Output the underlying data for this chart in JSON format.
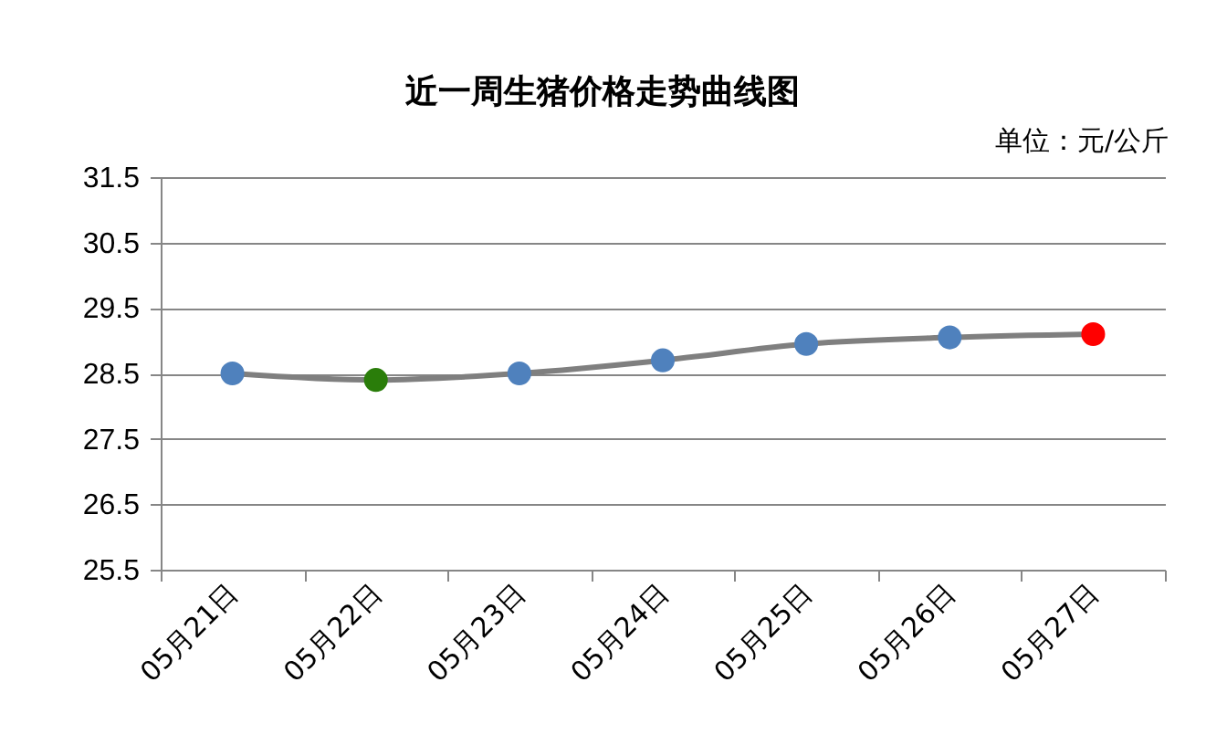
{
  "chart_data": {
    "type": "line",
    "title": "近一周生猪价格走势曲线图",
    "annotations": [
      "单位：元/公斤"
    ],
    "categories": [
      "05月21日",
      "05月22日",
      "05月23日",
      "05月24日",
      "05月25日",
      "05月26日",
      "05月27日"
    ],
    "series": [
      {
        "color": "#7f7f7f",
        "colors": [
          "#4f81bd",
          "#2a7d0a",
          "#4f81bd",
          "#4f81bd",
          "#4f81bd",
          "#4f81bd",
          "#ff0000"
        ],
        "values": [
          28.5,
          28.4,
          28.5,
          28.7,
          28.95,
          29.05,
          29.1
        ]
      }
    ],
    "ylim": [
      25.5,
      31.5
    ],
    "yticks": [
      25.5,
      26.5,
      27.5,
      28.5,
      29.5,
      30.5,
      31.5
    ],
    "grid": "y",
    "marker": "circle",
    "line_style": "solid"
  }
}
